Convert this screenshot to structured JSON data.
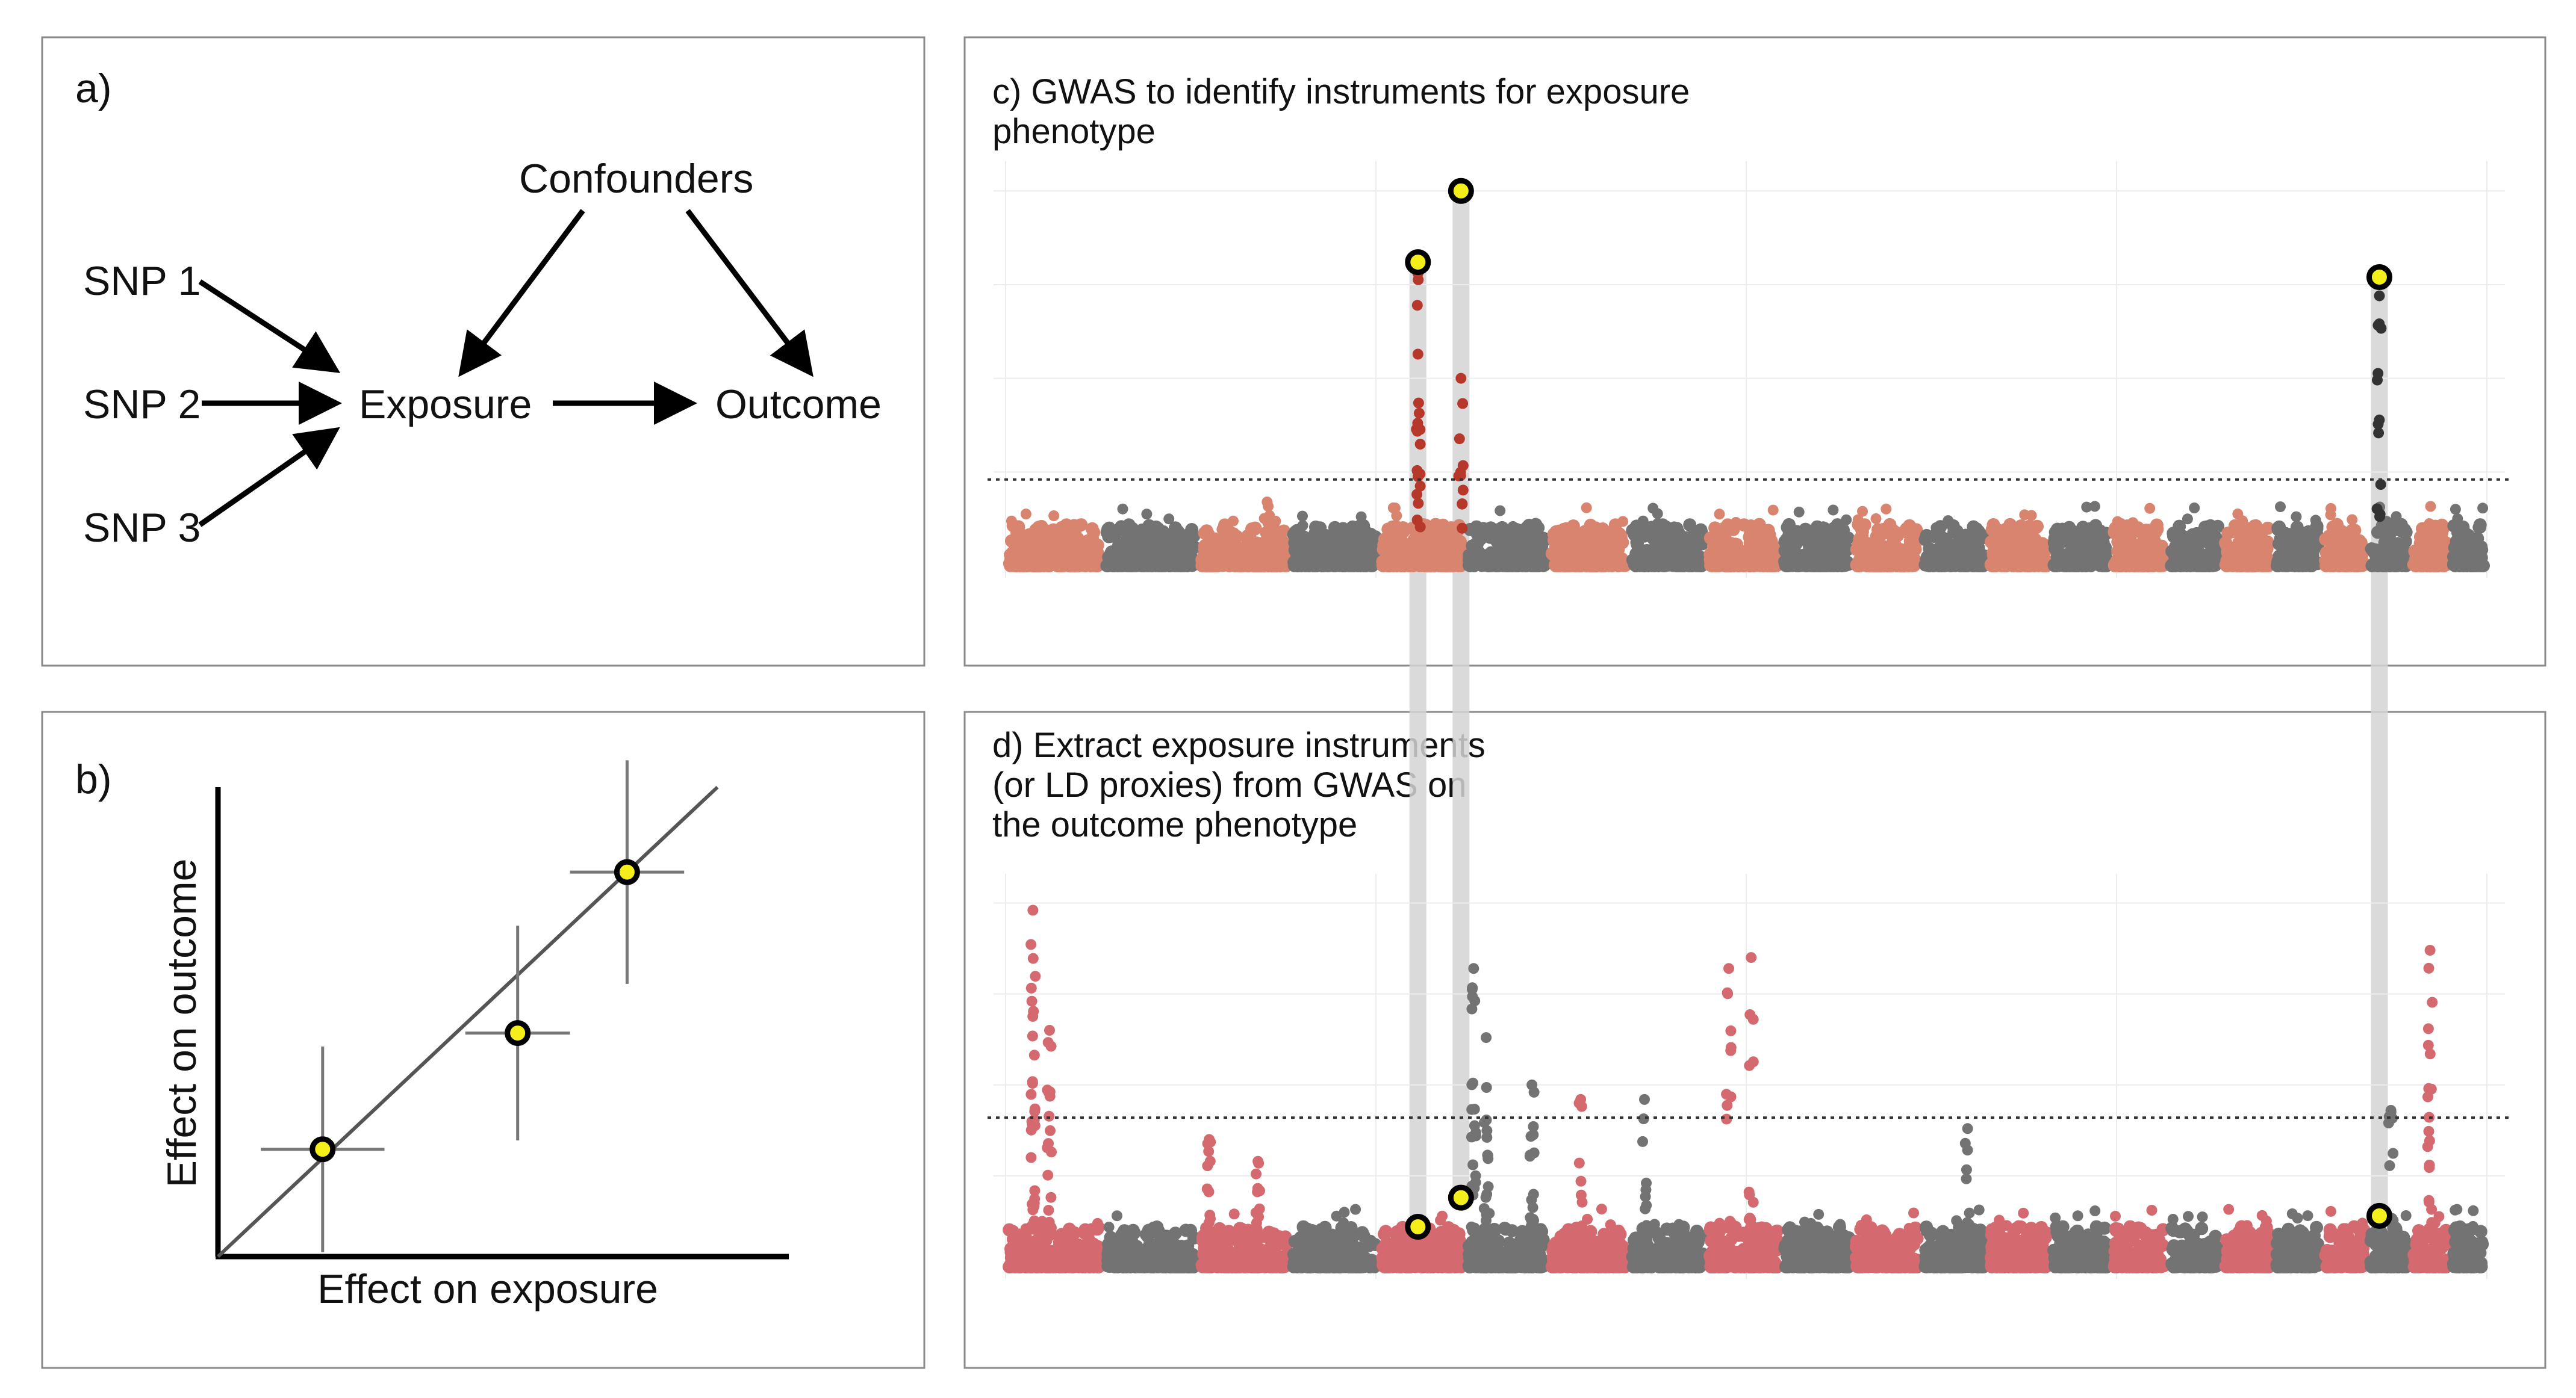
{
  "panel_a": {
    "label": "a)",
    "confounders": "Confounders",
    "snp1": "SNP 1",
    "snp2": "SNP 2",
    "snp3": "SNP 3",
    "exposure": "Exposure",
    "outcome": "Outcome"
  },
  "panel_b": {
    "label": "b)",
    "xlabel": "Effect on exposure",
    "ylabel": "Effect on outcome"
  },
  "panel_c": {
    "title_line1": "c) GWAS to identify instruments for exposure",
    "title_line2": "phenotype"
  },
  "panel_d": {
    "title_line1": "d) Extract exposure instruments",
    "title_line2": "(or LD proxies) from GWAS on",
    "title_line3": "the outcome phenotype"
  },
  "colors": {
    "exposure_chrom_a": "#d9846e",
    "exposure_chrom_b": "#737373",
    "exposure_peak_red": "#b5382a",
    "outcome_chrom_a": "#d46a6f",
    "outcome_chrom_b": "#737373",
    "highlight": "#f4ee1a"
  },
  "chart_data": [
    {
      "type": "scatter",
      "panel": "b",
      "xlabel": "Effect on exposure",
      "ylabel": "Effect on outcome",
      "points": [
        {
          "x": 0.22,
          "y": 0.24,
          "x_err": 0.13,
          "y_err": 0.23
        },
        {
          "x": 0.63,
          "y": 0.5,
          "x_err": 0.11,
          "y_err": 0.24
        },
        {
          "x": 0.86,
          "y": 0.86,
          "x_err": 0.12,
          "y_err": 0.25
        }
      ],
      "fit_line": {
        "slope": 1.0,
        "intercept": 0.0
      },
      "xlim": [
        0,
        1.2
      ],
      "ylim": [
        0,
        1.05
      ]
    },
    {
      "type": "scatter",
      "panel": "c",
      "chromosome_count": 22,
      "threshold": 0.23,
      "ylim": [
        0,
        1.1
      ],
      "peaks": [
        {
          "chrom": 5,
          "pos": 0.45,
          "height": 0.81,
          "highlight": true
        },
        {
          "chrom": 5,
          "pos": 0.95,
          "height": 1.0,
          "highlight": true
        },
        {
          "chrom": 20,
          "pos": 0.28,
          "height": 0.77,
          "highlight": true
        }
      ]
    },
    {
      "type": "scatter",
      "panel": "d",
      "chromosome_count": 22,
      "threshold": 0.41,
      "ylim": [
        0,
        1.1
      ],
      "highlighted_points": [
        {
          "chrom": 5,
          "pos": 0.45,
          "height": 0.11
        },
        {
          "chrom": 5,
          "pos": 0.95,
          "height": 0.19
        },
        {
          "chrom": 20,
          "pos": 0.28,
          "height": 0.14
        }
      ]
    }
  ]
}
